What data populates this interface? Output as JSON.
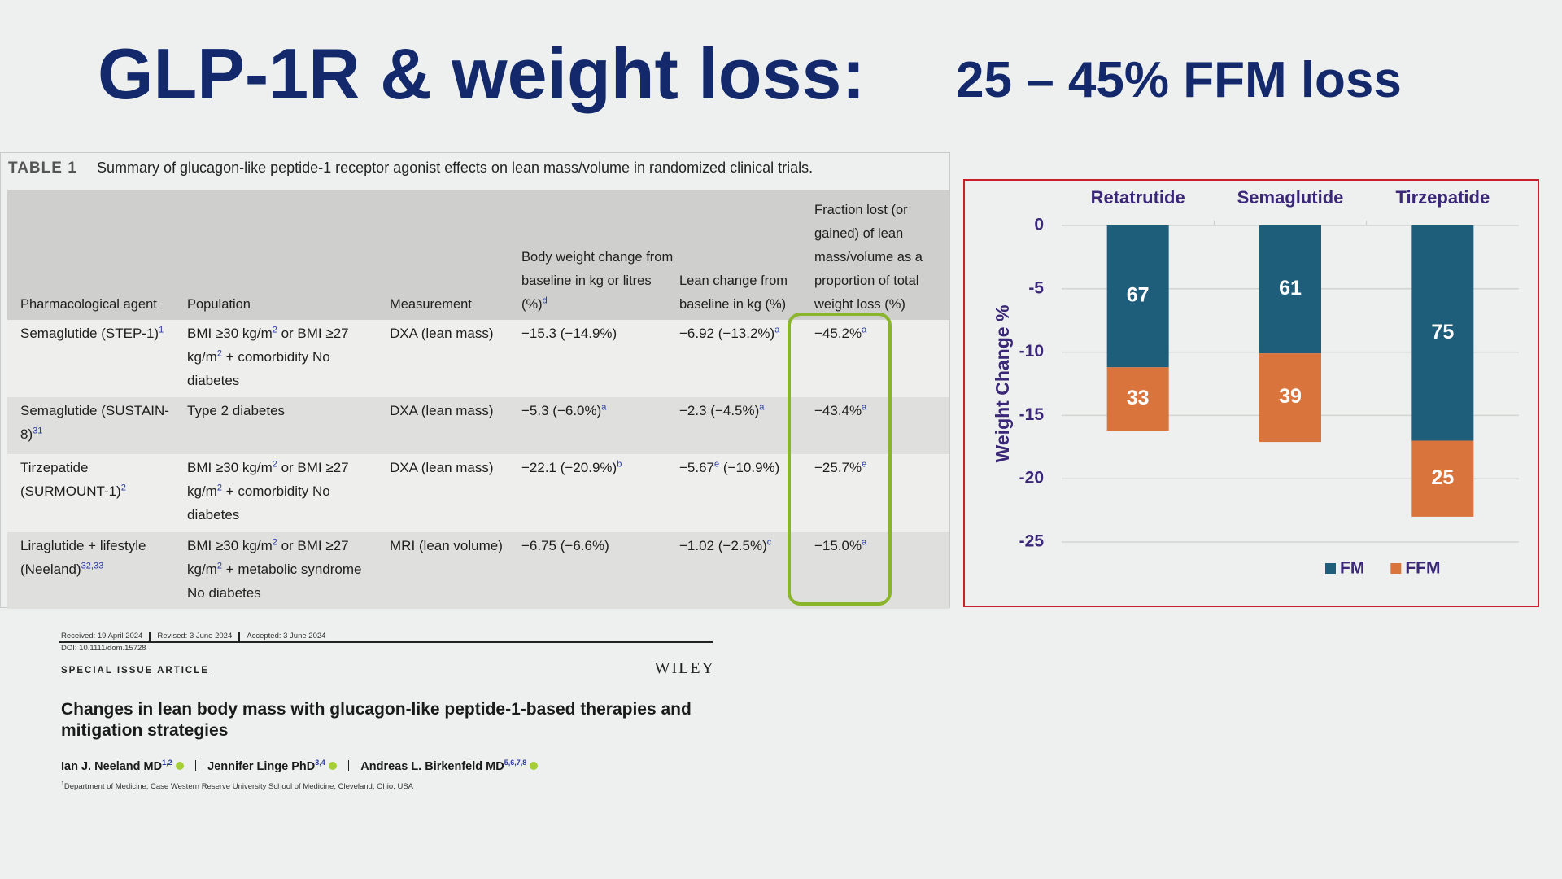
{
  "slide_title": {
    "main": "GLP-1R & weight loss:",
    "sub": "25 – 45% FFM loss"
  },
  "table": {
    "label": "TABLE 1",
    "caption": "Summary of glucagon-like peptide-1 receptor agonist effects on lean mass/volume in randomized clinical trials.",
    "header": [
      [
        "Pharmacological agent"
      ],
      [
        "Population"
      ],
      [
        "Measurement"
      ],
      [
        "Body weight change from baseline in kg or litres (%)",
        {
          "sup": "d"
        }
      ],
      [
        "Lean change from baseline in kg (%)"
      ],
      [
        "Fraction lost (or gained) of lean mass/volume as a proportion of total weight loss (%)"
      ]
    ],
    "rows": [
      [
        [
          "Semaglutide (STEP-1)",
          {
            "sup": "1"
          }
        ],
        [
          "BMI ≥30 kg/m",
          {
            "sup": "2"
          },
          " or BMI ≥27 kg/m",
          {
            "sup": "2"
          },
          " + comorbidity No diabetes"
        ],
        [
          "DXA (lean mass)"
        ],
        [
          "−15.3 (−14.9%)"
        ],
        [
          "−6.92 (−13.2%)",
          {
            "sup": "a"
          }
        ],
        [
          "−45.2%",
          {
            "sup": "a"
          }
        ]
      ],
      [
        [
          "Semaglutide (SUSTAIN-8)",
          {
            "sup": "31"
          }
        ],
        [
          "Type 2 diabetes"
        ],
        [
          "DXA (lean mass)"
        ],
        [
          "−5.3 (−6.0%)",
          {
            "sup": "a"
          }
        ],
        [
          "−2.3 (−4.5%)",
          {
            "sup": "a"
          }
        ],
        [
          "−43.4%",
          {
            "sup": "a"
          }
        ]
      ],
      [
        [
          "Tirzepatide (SURMOUNT-1)",
          {
            "sup": "2"
          }
        ],
        [
          "BMI ≥30 kg/m",
          {
            "sup": "2"
          },
          " or BMI ≥27 kg/m",
          {
            "sup": "2"
          },
          " + comorbidity No diabetes"
        ],
        [
          "DXA (lean mass)"
        ],
        [
          "−22.1 (−20.9%)",
          {
            "sup": "b"
          }
        ],
        [
          "−5.67",
          {
            "sup": "e"
          },
          " (−10.9%)"
        ],
        [
          "−25.7%",
          {
            "sup": "e"
          }
        ]
      ],
      [
        [
          "Liraglutide + lifestyle (Neeland)",
          {
            "sup": "32,33"
          }
        ],
        [
          "BMI ≥30 kg/m",
          {
            "sup": "2"
          },
          " or BMI ≥27 kg/m",
          {
            "sup": "2"
          },
          " + metabolic syndrome No diabetes"
        ],
        [
          "MRI (lean volume)"
        ],
        [
          "−6.75 (−6.6%)"
        ],
        [
          "−1.02 (−2.5%)",
          {
            "sup": "c"
          }
        ],
        [
          "−15.0%",
          {
            "sup": "a"
          }
        ]
      ]
    ]
  },
  "chart_data": {
    "type": "bar",
    "stacked": true,
    "categories": [
      "Retatrutide",
      "Semaglutide",
      "Tirzepatide"
    ],
    "ylabel": "Weight Change %",
    "ylim": [
      -25,
      0
    ],
    "yticks": [
      0,
      -5,
      -10,
      -15,
      -20,
      -25
    ],
    "grid": true,
    "legend": "bottom",
    "series": [
      {
        "name": "FM",
        "color": "#1f5e7a",
        "values": [
          -11.2,
          -10.1,
          -17
        ],
        "segment_labels": [
          67,
          61,
          75
        ]
      },
      {
        "name": "FFM",
        "color": "#d9743c",
        "values": [
          -5,
          -7,
          -6
        ],
        "segment_labels": [
          33,
          39,
          25
        ]
      }
    ]
  },
  "paper": {
    "dates": [
      "Received: 19 April 2024",
      "Revised: 3 June 2024",
      "Accepted: 3 June 2024"
    ],
    "doi": "DOI: 10.1111/dom.15728",
    "section": "SPECIAL ISSUE ARTICLE",
    "publisher": "WILEY",
    "title": "Changes in lean body mass with glucagon-like peptide-1-based therapies and mitigation strategies",
    "authors": [
      {
        "name": "Ian J. Neeland MD",
        "sup": "1,2"
      },
      {
        "name": "Jennifer Linge PhD",
        "sup": "3,4"
      },
      {
        "name": "Andreas L. Birkenfeld MD",
        "sup": "5,6,7,8"
      }
    ],
    "affiliation": {
      "sup": "1",
      "text": "Department of Medicine, Case Western Reserve University School of Medicine, Cleveland, Ohio, USA"
    }
  }
}
